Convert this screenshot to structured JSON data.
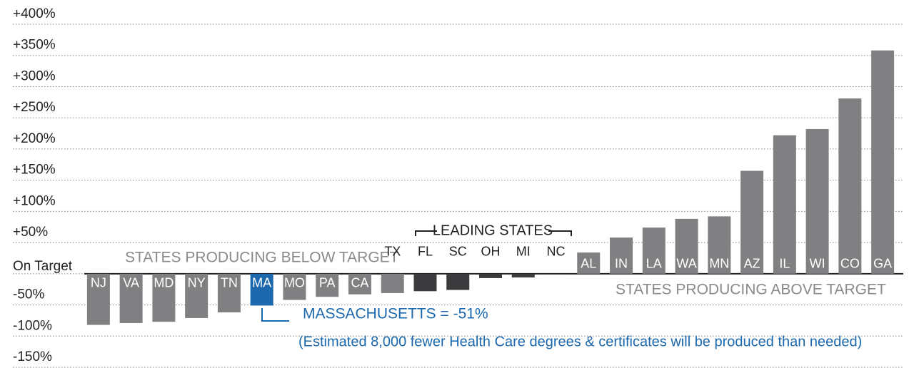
{
  "chart_data": {
    "type": "bar",
    "categories": [
      "NJ",
      "VA",
      "MD",
      "NY",
      "TN",
      "MA",
      "MO",
      "PA",
      "CA",
      "TX",
      "FL",
      "SC",
      "OH",
      "MI",
      "NC",
      "AL",
      "IN",
      "LA",
      "WA",
      "MN",
      "AZ",
      "IL",
      "WI",
      "CO",
      "GA"
    ],
    "values": [
      -82,
      -79,
      -77,
      -71,
      -62,
      -51,
      -42,
      -37,
      -33,
      -31,
      -28,
      -26,
      -7,
      -6,
      -1,
      34,
      58,
      74,
      88,
      92,
      165,
      222,
      232,
      281,
      358
    ],
    "colors": [
      "#808083",
      "#808083",
      "#808083",
      "#808083",
      "#808083",
      "#1b68ad",
      "#808083",
      "#808083",
      "#808083",
      "#808083",
      "#3b3b3d",
      "#3b3b3d",
      "#3b3b3d",
      "#3b3b3d",
      "#3b3b3d",
      "#808083",
      "#808083",
      "#808083",
      "#808083",
      "#808083",
      "#808083",
      "#808083",
      "#808083",
      "#808083",
      "#808083"
    ],
    "ylim": [
      -150,
      400
    ],
    "yticks": [
      {
        "value": -150,
        "label": "-150%"
      },
      {
        "value": -100,
        "label": "-100%"
      },
      {
        "value": -50,
        "label": "-50%"
      },
      {
        "value": 0,
        "label": "On Target"
      },
      {
        "value": 50,
        "label": "+50%"
      },
      {
        "value": 100,
        "label": "+100%"
      },
      {
        "value": 150,
        "label": "+150%"
      },
      {
        "value": 200,
        "label": "+200%"
      },
      {
        "value": 250,
        "label": "+250%"
      },
      {
        "value": 300,
        "label": "+300%"
      },
      {
        "value": 350,
        "label": "+350%"
      },
      {
        "value": 400,
        "label": "+400%"
      }
    ],
    "grid": true,
    "annotations": {
      "below": "STATES PRODUCING BELOW TARGET",
      "leading": "LEADING STATES",
      "above": "STATES PRODUCING ABOVE TARGET",
      "highlight": "MASSACHUSETTS = -51%",
      "note": "(Estimated 8,000 fewer Health Care degrees & certificates will be produced than needed)"
    }
  }
}
